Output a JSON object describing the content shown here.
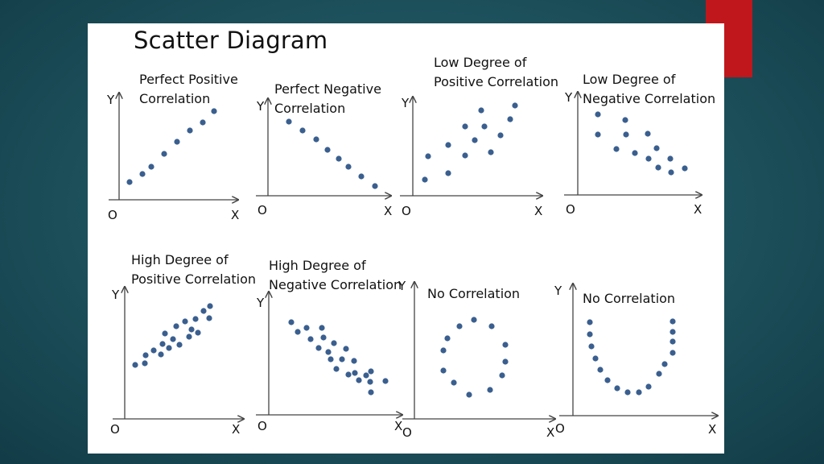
{
  "title": "Scatter Diagram",
  "colors": {
    "dots": "#3a5f8f",
    "accent": "#c0171c",
    "card": "#ffffff",
    "background": "#1f5560"
  },
  "panels": [
    {
      "label_lines": [
        "Perfect Positive",
        "Correlation"
      ],
      "y_label": "Y",
      "x_label": "X",
      "origin_label": "O"
    },
    {
      "label_lines": [
        "Perfect Negative",
        "Correlation"
      ],
      "y_label": "Y",
      "x_label": "X",
      "origin_label": "O"
    },
    {
      "label_lines": [
        "Low Degree of",
        "Positive Correlation"
      ],
      "y_label": "Y",
      "x_label": "X",
      "origin_label": "O"
    },
    {
      "label_lines": [
        "Low Degree of",
        "Negative Correlation"
      ],
      "y_label": "Y",
      "x_label": "X",
      "origin_label": "O"
    },
    {
      "label_lines": [
        "High Degree of",
        "Positive Correlation"
      ],
      "y_label": "Y",
      "x_label": "X",
      "origin_label": "O"
    },
    {
      "label_lines": [
        "High Degree of",
        "Negative Correlation"
      ],
      "y_label": "Y",
      "x_label": "X",
      "origin_label": "O"
    },
    {
      "label_lines": [
        "No Correlation"
      ],
      "y_label": "Y",
      "x_label": "X",
      "origin_label": "O"
    },
    {
      "label_lines": [
        "No Correlation"
      ],
      "y_label": "Y",
      "x_label": "X",
      "origin_label": "O"
    }
  ]
}
